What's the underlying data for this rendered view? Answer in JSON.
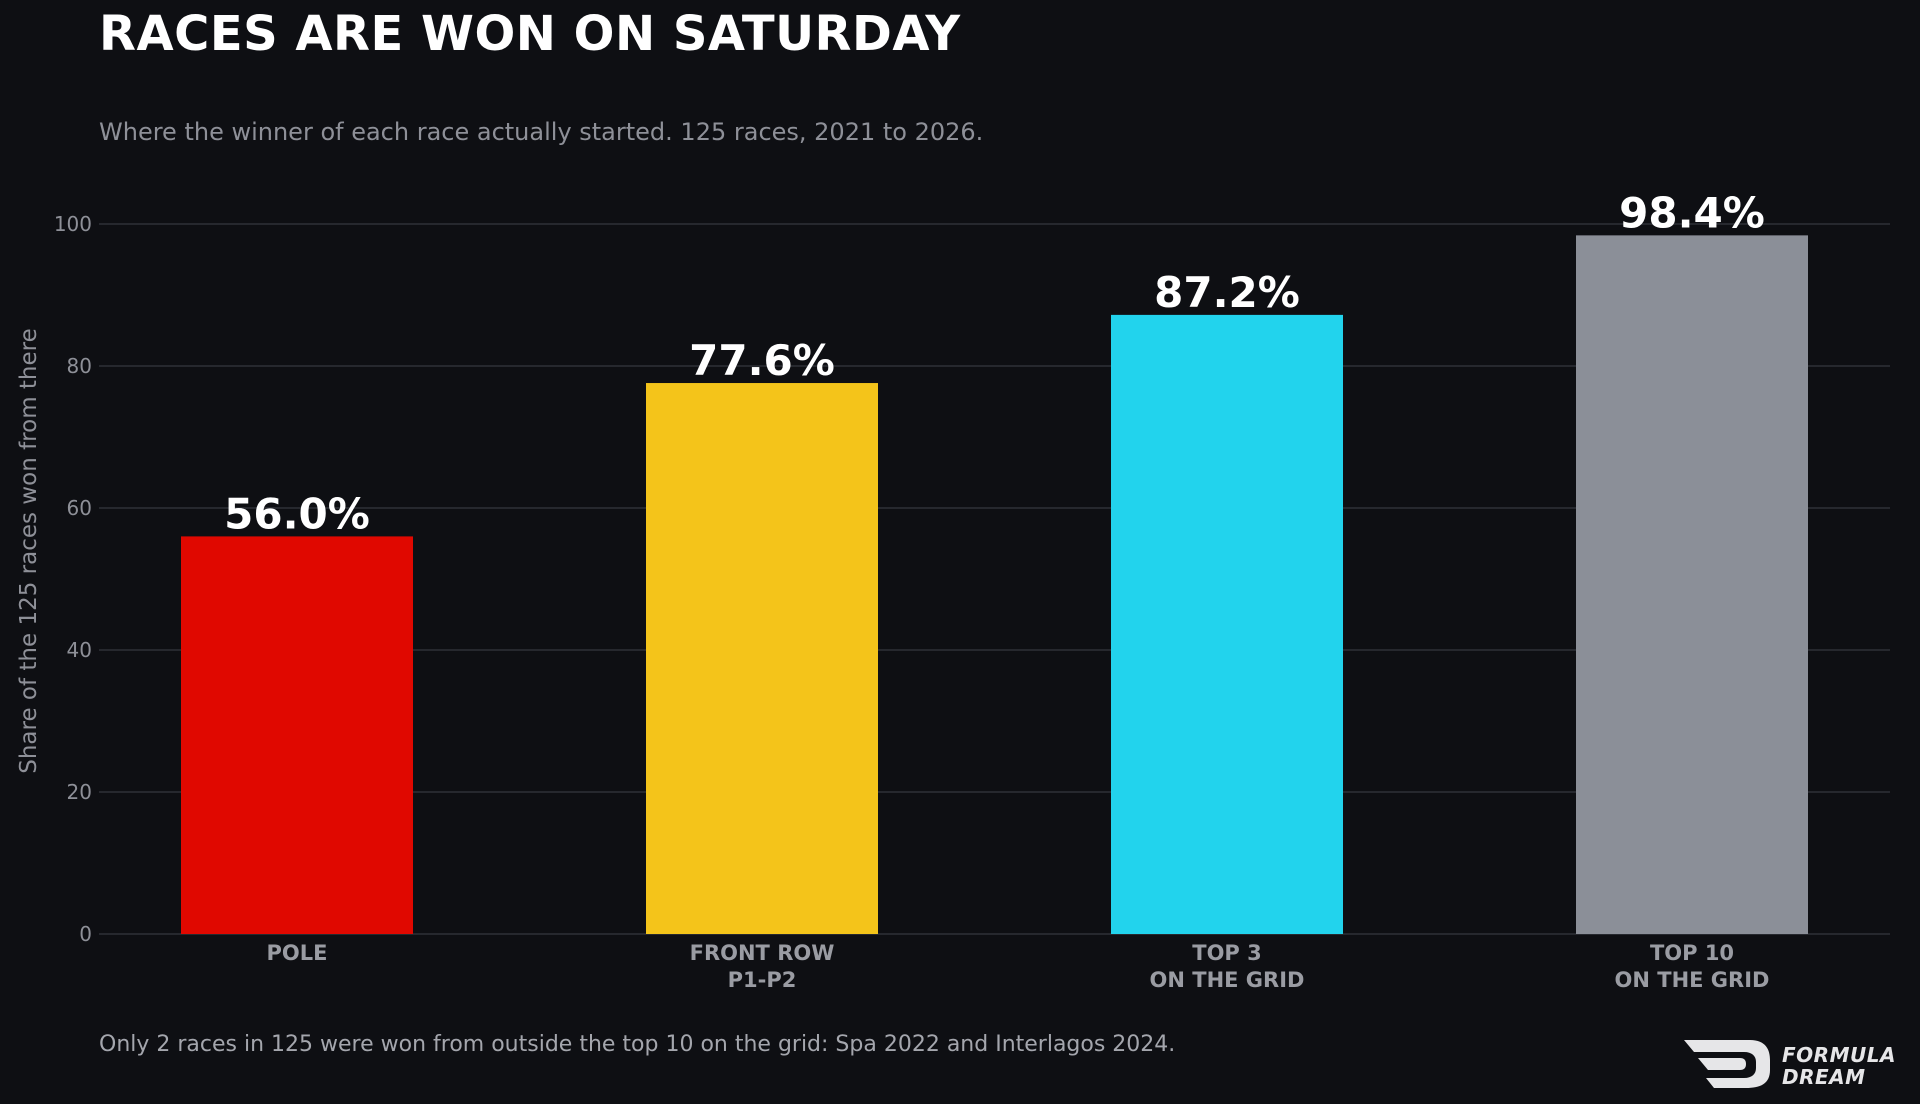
{
  "title": "RACES ARE WON ON SATURDAY",
  "subtitle": "Where the winner of each race actually started. 125 races, 2021 to 2026.",
  "footnote": "Only 2 races in 125 were won from outside the top 10 on the grid: Spa 2022 and Interlagos 2024.",
  "logo": {
    "line1": "FORMULA",
    "line2": "DREAM"
  },
  "chart_data": {
    "type": "bar",
    "categories": [
      [
        "POLE"
      ],
      [
        "FRONT ROW",
        "P1-P2"
      ],
      [
        "TOP 3",
        "ON THE GRID"
      ],
      [
        "TOP 10",
        "ON THE GRID"
      ]
    ],
    "values": [
      56.0,
      77.6,
      87.2,
      98.4
    ],
    "value_labels": [
      "56.0%",
      "77.6%",
      "87.2%",
      "98.4%"
    ],
    "colors": [
      "#e00800",
      "#f4c41a",
      "#22d3ed",
      "#8b8f98"
    ],
    "ylabel": "Share of the 125 races won from there",
    "ylim": [
      0,
      100
    ],
    "yticks": [
      0,
      20,
      40,
      60,
      80,
      100
    ],
    "grid": true
  }
}
